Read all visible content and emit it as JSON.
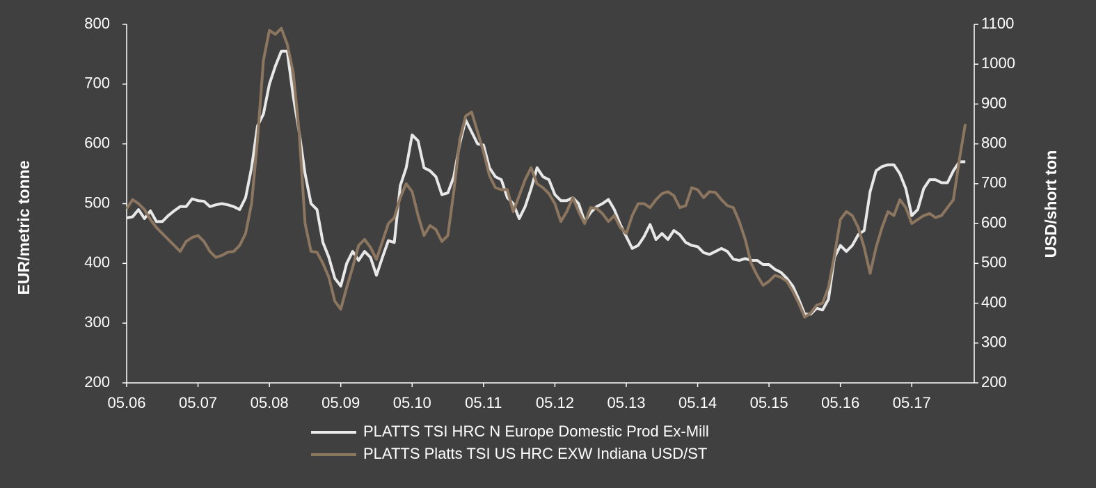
{
  "chart_data": {
    "type": "line",
    "y_label": "EUR/metric tonne",
    "y2_label": "USD/short ton",
    "x": [
      "05.06",
      "06.06",
      "07.06",
      "08.06",
      "09.06",
      "10.06",
      "11.06",
      "12.06",
      "01.07",
      "02.07",
      "03.07",
      "04.07",
      "05.07",
      "06.07",
      "07.07",
      "08.07",
      "09.07",
      "10.07",
      "11.07",
      "12.07",
      "01.08",
      "02.08",
      "03.08",
      "04.08",
      "05.08",
      "06.08",
      "07.08",
      "08.08",
      "09.08",
      "10.08",
      "11.08",
      "12.08",
      "01.09",
      "02.09",
      "03.09",
      "04.09",
      "05.09",
      "06.09",
      "07.09",
      "08.09",
      "09.09",
      "10.09",
      "11.09",
      "12.09",
      "01.10",
      "02.10",
      "03.10",
      "04.10",
      "05.10",
      "06.10",
      "07.10",
      "08.10",
      "09.10",
      "10.10",
      "11.10",
      "12.10",
      "01.11",
      "02.11",
      "03.11",
      "04.11",
      "05.11",
      "06.11",
      "07.11",
      "08.11",
      "09.11",
      "10.11",
      "11.11",
      "12.11",
      "01.12",
      "02.12",
      "03.12",
      "04.12",
      "05.12",
      "06.12",
      "07.12",
      "08.12",
      "09.12",
      "10.12",
      "11.12",
      "12.12",
      "01.13",
      "02.13",
      "03.13",
      "04.13",
      "05.13",
      "06.13",
      "07.13",
      "08.13",
      "09.13",
      "10.13",
      "11.13",
      "12.13",
      "01.14",
      "02.14",
      "03.14",
      "04.14",
      "05.14",
      "06.14",
      "07.14",
      "08.14",
      "09.14",
      "10.14",
      "11.14",
      "12.14",
      "01.15",
      "02.15",
      "03.15",
      "04.15",
      "05.15",
      "06.15",
      "07.15",
      "08.15",
      "09.15",
      "10.15",
      "11.15",
      "12.15",
      "01.16",
      "02.16",
      "03.16",
      "04.16",
      "05.16",
      "06.16",
      "07.16",
      "08.16",
      "09.16",
      "10.16",
      "11.16",
      "12.16",
      "01.17",
      "02.17",
      "03.17",
      "04.17",
      "05.17",
      "06.17",
      "07.17",
      "08.17",
      "09.17",
      "10.17",
      "11.17",
      "12.17",
      "01.18",
      "02.18"
    ],
    "xticks": [
      "05.06",
      "05.07",
      "05.08",
      "05.09",
      "05.10",
      "05.11",
      "05.12",
      "05.13",
      "05.14",
      "05.15",
      "05.16",
      "05.17"
    ],
    "ylim": [
      200,
      800
    ],
    "yticks": [
      200,
      300,
      400,
      500,
      600,
      700,
      800
    ],
    "y2lim": [
      200,
      1100
    ],
    "y2ticks": [
      200,
      300,
      400,
      500,
      600,
      700,
      800,
      900,
      1000,
      1100
    ],
    "legend": "bottom",
    "series": [
      {
        "name": "PLATTS TSI HRC N Europe Domestic Prod Ex-Mill",
        "color": "#e8e8e8",
        "axis": "y",
        "values": [
          476,
          478,
          490,
          475,
          488,
          470,
          470,
          480,
          488,
          495,
          495,
          508,
          505,
          504,
          495,
          498,
          500,
          498,
          495,
          490,
          510,
          560,
          630,
          650,
          700,
          730,
          755,
          755,
          680,
          620,
          550,
          500,
          490,
          435,
          410,
          375,
          362,
          400,
          420,
          405,
          420,
          410,
          380,
          410,
          438,
          435,
          530,
          560,
          615,
          605,
          560,
          555,
          545,
          515,
          518,
          545,
          600,
          640,
          620,
          600,
          598,
          560,
          545,
          540,
          510,
          500,
          475,
          495,
          525,
          560,
          545,
          540,
          515,
          505,
          505,
          510,
          500,
          470,
          485,
          495,
          500,
          507,
          490,
          465,
          445,
          425,
          430,
          445,
          465,
          440,
          450,
          440,
          455,
          448,
          435,
          430,
          428,
          418,
          415,
          420,
          425,
          420,
          407,
          405,
          408,
          405,
          405,
          398,
          398,
          390,
          385,
          375,
          362,
          340,
          315,
          315,
          325,
          322,
          340,
          410,
          430,
          420,
          430,
          448,
          455,
          520,
          555,
          562,
          565,
          565,
          550,
          525,
          480,
          490,
          525,
          540,
          540,
          535,
          535,
          555,
          570,
          570
        ]
      },
      {
        "name": "PLATTS Platts TSI US HRC EXW Indiana USD/ST",
        "color": "#8c7660",
        "axis": "y2",
        "values": [
          637,
          660,
          650,
          635,
          610,
          590,
          575,
          560,
          545,
          530,
          555,
          565,
          570,
          555,
          530,
          515,
          520,
          528,
          530,
          545,
          575,
          650,
          810,
          1010,
          1085,
          1075,
          1090,
          1050,
          980,
          830,
          600,
          530,
          528,
          500,
          465,
          405,
          385,
          440,
          490,
          545,
          560,
          540,
          510,
          555,
          600,
          615,
          665,
          700,
          680,
          620,
          570,
          595,
          585,
          555,
          570,
          680,
          810,
          870,
          880,
          830,
          780,
          720,
          690,
          685,
          685,
          630,
          670,
          710,
          740,
          700,
          690,
          675,
          650,
          605,
          630,
          665,
          630,
          600,
          640,
          638,
          625,
          605,
          620,
          590,
          575,
          620,
          650,
          650,
          640,
          660,
          675,
          680,
          670,
          640,
          645,
          690,
          685,
          665,
          680,
          678,
          660,
          645,
          640,
          605,
          560,
          500,
          470,
          445,
          455,
          470,
          465,
          455,
          430,
          400,
          365,
          375,
          395,
          400,
          440,
          520,
          610,
          630,
          620,
          590,
          540,
          475,
          540,
          590,
          630,
          620,
          660,
          640,
          600,
          610,
          620,
          625,
          615,
          620,
          640,
          660,
          760,
          850
        ]
      }
    ]
  }
}
